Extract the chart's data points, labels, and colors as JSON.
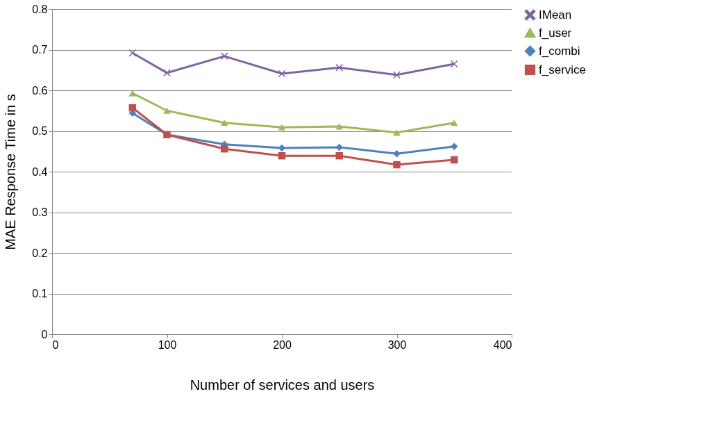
{
  "chart_data": {
    "type": "line",
    "xlabel": "Number of services and users",
    "ylabel": "MAE Response Time in s",
    "x": [
      70,
      100,
      150,
      200,
      250,
      300,
      350
    ],
    "xlim": [
      0,
      400
    ],
    "xticks": [
      0,
      100,
      200,
      300,
      400
    ],
    "ylim": [
      0,
      0.8
    ],
    "yticks": [
      0,
      0.1,
      0.2,
      0.3,
      0.4,
      0.5,
      0.6,
      0.7,
      0.8
    ],
    "grid": "y",
    "legend": "right",
    "series": [
      {
        "name": "IMean",
        "color": "#8064a2",
        "marker": "cross",
        "values": [
          0.692,
          0.643,
          0.684,
          0.641,
          0.656,
          0.638,
          0.665
        ]
      },
      {
        "name": "f_user",
        "color": "#9bbb59",
        "marker": "triangle",
        "values": [
          0.593,
          0.55,
          0.52,
          0.509,
          0.511,
          0.496,
          0.52
        ]
      },
      {
        "name": "f_combi",
        "color": "#4f81bd",
        "marker": "diamond",
        "values": [
          0.544,
          0.491,
          0.467,
          0.458,
          0.46,
          0.444,
          0.462
        ]
      },
      {
        "name": "f_service",
        "color": "#c0504d",
        "marker": "square",
        "values": [
          0.557,
          0.491,
          0.456,
          0.439,
          0.439,
          0.417,
          0.429
        ]
      }
    ]
  }
}
